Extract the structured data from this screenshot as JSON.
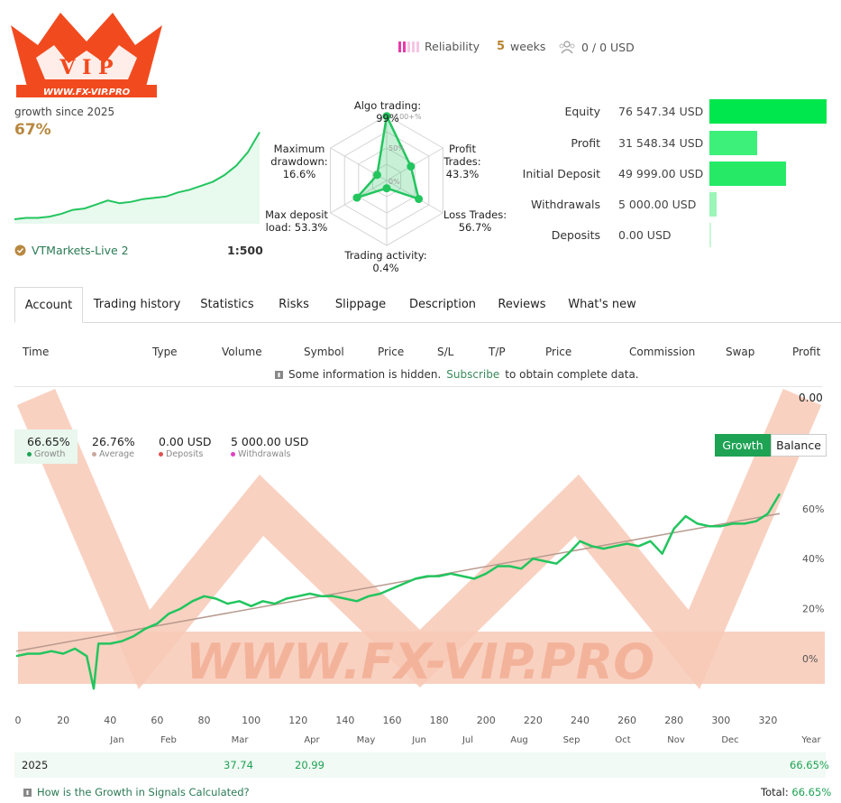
{
  "header": {
    "reliability_label": "Reliability",
    "reliability_level": 2,
    "weeks_num": "5",
    "weeks_label": "weeks",
    "subscribers": "0 / 0 USD"
  },
  "logo": {
    "text": "WWW.FX-VIP.PRO",
    "color": "#f24a1f"
  },
  "watermark": {
    "text": "WWW.FX-VIP.PRO"
  },
  "growth": {
    "label": "growth since 2025",
    "value": "67%",
    "broker": "VTMarkets-Live 2",
    "leverage": "1:500"
  },
  "radar": {
    "labels": {
      "algo": "Algo trading: 99%",
      "profit": [
        "Profit",
        "Trades:",
        "43.3%"
      ],
      "loss": [
        "Loss Trades:",
        "56.7%"
      ],
      "activity": "Trading activity: 0.4%",
      "load": [
        "Max deposit",
        "load: 53.3%"
      ],
      "drawdown": [
        "Maximum",
        "drawdown:",
        "16.6%"
      ]
    },
    "ticks": [
      "100+%",
      "50%",
      "0%"
    ],
    "values": [
      0.99,
      0.43,
      0.57,
      0.004,
      0.53,
      0.17
    ]
  },
  "equity": [
    {
      "label": "Equity",
      "value": "76 547.34 USD",
      "fraction": 1.0,
      "color": "#00e64d"
    },
    {
      "label": "Profit",
      "value": "31 548.34 USD",
      "fraction": 0.41,
      "color": "#3df07a"
    },
    {
      "label": "Initial Deposit",
      "value": "49 999.00 USD",
      "fraction": 0.65,
      "color": "#26ea66"
    },
    {
      "label": "Withdrawals",
      "value": "5 000.00 USD",
      "fraction": 0.065,
      "color": "#9bf5b8"
    },
    {
      "label": "Deposits",
      "value": "0.00 USD",
      "fraction": 0.0,
      "color": "#c8f7d6"
    }
  ],
  "tabs": [
    "Account",
    "Trading history",
    "Statistics",
    "Risks",
    "Slippage",
    "Description",
    "Reviews",
    "What's new"
  ],
  "table": {
    "headers": [
      "Time",
      "Type",
      "Volume",
      "Symbol",
      "Price",
      "S/L",
      "T/P",
      "Price",
      "Commission",
      "Swap",
      "Profit"
    ],
    "hidden_note": "Some information is hidden.",
    "subscribe": "Subscribe",
    "hidden_rest": "to obtain complete data.",
    "profit_total": "0.00"
  },
  "stats": [
    {
      "value": "66.65%",
      "label": "Growth",
      "color": "#1ea254"
    },
    {
      "value": "26.76%",
      "label": "Average",
      "color": "#c8a89a"
    },
    {
      "value": "0.00 USD",
      "label": "Deposits",
      "color": "#e05050"
    },
    {
      "value": "5 000.00 USD",
      "label": "Withdrawals",
      "color": "#e040c0"
    }
  ],
  "toggle": {
    "growth": "Growth",
    "balance": "Balance"
  },
  "chart_data": {
    "type": "line",
    "x_ticks": [
      0,
      20,
      40,
      60,
      80,
      100,
      120,
      140,
      160,
      180,
      200,
      220,
      240,
      260,
      280,
      300,
      320
    ],
    "y_ticks": [
      "60%",
      "40%",
      "20%",
      "0%"
    ],
    "months": [
      "Jan",
      "Feb",
      "Mar",
      "Apr",
      "May",
      "Jun",
      "Jul",
      "Aug",
      "Sep",
      "Oct",
      "Nov",
      "Dec"
    ],
    "year_label": "Year",
    "series": [
      {
        "name": "Growth",
        "color": "#22c55e",
        "x": [
          0,
          5,
          10,
          15,
          20,
          25,
          30,
          33,
          35,
          40,
          45,
          50,
          55,
          60,
          65,
          70,
          75,
          80,
          85,
          90,
          95,
          100,
          105,
          110,
          115,
          120,
          125,
          130,
          135,
          140,
          145,
          150,
          155,
          160,
          165,
          170,
          175,
          180,
          185,
          190,
          195,
          200,
          205,
          210,
          215,
          220,
          225,
          230,
          235,
          240,
          245,
          250,
          255,
          260,
          265,
          270,
          275,
          280,
          285,
          290,
          295,
          300,
          305,
          310,
          315,
          320,
          325
        ],
        "y": [
          1,
          2,
          2,
          3,
          2,
          4,
          1,
          -12,
          6,
          6,
          7,
          9,
          12,
          14,
          18,
          20,
          23,
          25,
          24,
          22,
          23,
          21,
          23,
          22,
          24,
          25,
          26,
          25,
          25,
          24,
          23,
          25,
          26,
          28,
          30,
          32,
          33,
          33,
          34,
          33,
          32,
          34,
          37,
          37,
          36,
          40,
          39,
          38,
          42,
          47,
          45,
          44,
          45,
          46,
          45,
          47,
          42,
          52,
          57,
          54,
          53,
          53,
          54,
          54,
          55,
          58,
          66
        ]
      },
      {
        "name": "Average",
        "color": "#c8a89a",
        "x": [
          0,
          325
        ],
        "y": [
          3,
          58
        ]
      }
    ],
    "xlim": [
      0,
      330
    ],
    "ylim": [
      -14,
      70
    ]
  },
  "year_row": {
    "year": "2025",
    "mar": "37.74",
    "apr": "20.99",
    "total": "66.65%"
  },
  "footer": {
    "link": "How is the Growth in Signals Calculated?",
    "total_label": "Total:",
    "total_value": "66.65%"
  },
  "spark": [
    2,
    3,
    3,
    4,
    6,
    9,
    10,
    13,
    16,
    14,
    15,
    17,
    18,
    19,
    22,
    24,
    27,
    30,
    35,
    42,
    52,
    67
  ]
}
